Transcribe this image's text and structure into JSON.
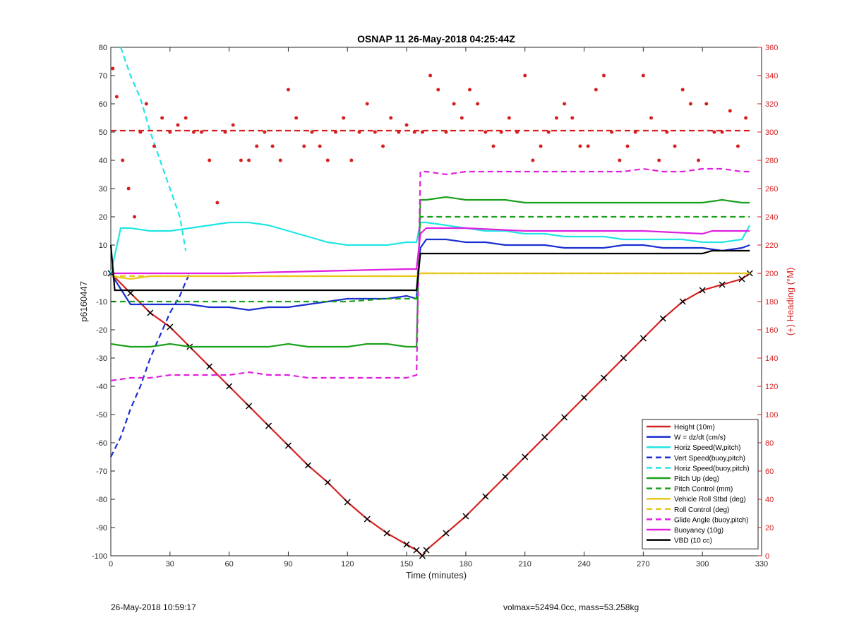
{
  "chart_data": {
    "type": "line",
    "title": "OSNAP 11 26-May-2018 04:25:44Z",
    "xlabel": "Time (minutes)",
    "ylabel": "p6160447",
    "ylabel_right": "(+) Heading (°M)",
    "xlim": [
      0,
      330
    ],
    "ylim": [
      -100,
      80
    ],
    "ylim_right": [
      0,
      360
    ],
    "xticks": [
      0,
      30,
      60,
      90,
      120,
      150,
      180,
      210,
      240,
      270,
      300,
      330
    ],
    "yticks": [
      -100,
      -90,
      -80,
      -70,
      -60,
      -50,
      -40,
      -30,
      -20,
      -10,
      0,
      10,
      20,
      30,
      40,
      50,
      60,
      70,
      80
    ],
    "yticks_right": [
      0,
      20,
      40,
      60,
      80,
      100,
      120,
      140,
      160,
      180,
      200,
      220,
      240,
      260,
      280,
      300,
      320,
      340,
      360
    ],
    "grid": false,
    "legend_position": "lower-right",
    "series": [
      {
        "name": "Height (10m)",
        "color": "#d62020",
        "style": "solid",
        "x": [
          0,
          10,
          20,
          30,
          40,
          50,
          60,
          70,
          80,
          90,
          100,
          110,
          120,
          130,
          140,
          150,
          155,
          158,
          160,
          170,
          180,
          190,
          200,
          210,
          220,
          230,
          240,
          250,
          260,
          270,
          280,
          290,
          300,
          310,
          320,
          324
        ],
        "y": [
          0,
          -7,
          -14,
          -19,
          -26,
          -33,
          -40,
          -47,
          -54,
          -61,
          -68,
          -74,
          -81,
          -87,
          -92,
          -96,
          -98,
          -100,
          -98,
          -92,
          -86,
          -79,
          -72,
          -65,
          -58,
          -51,
          -44,
          -37,
          -30,
          -23,
          -16,
          -10,
          -6,
          -4,
          -2,
          0
        ]
      },
      {
        "name": "W = dz/dt (cm/s)",
        "color": "#1a2fd0",
        "style": "solid",
        "x": [
          0,
          10,
          20,
          30,
          40,
          50,
          60,
          70,
          80,
          90,
          100,
          110,
          120,
          130,
          140,
          150,
          155,
          157,
          160,
          170,
          180,
          190,
          200,
          210,
          220,
          230,
          240,
          250,
          260,
          270,
          280,
          290,
          300,
          310,
          320,
          324
        ],
        "y": [
          0,
          -11,
          -11,
          -11,
          -11,
          -12,
          -12,
          -13,
          -12,
          -12,
          -11,
          -10,
          -9,
          -9,
          -9,
          -8,
          -9,
          9,
          12,
          12,
          11,
          11,
          10,
          10,
          10,
          9,
          9,
          9,
          10,
          10,
          9,
          9,
          9,
          8,
          9,
          10
        ]
      },
      {
        "name": "Horiz Speed(W,pitch)",
        "color": "#22e5e5",
        "style": "solid",
        "x": [
          0,
          5,
          10,
          20,
          30,
          40,
          50,
          60,
          70,
          80,
          90,
          100,
          110,
          120,
          130,
          140,
          150,
          155,
          157,
          160,
          170,
          180,
          190,
          200,
          210,
          220,
          230,
          240,
          250,
          260,
          270,
          280,
          290,
          300,
          310,
          320,
          324
        ],
        "y": [
          0,
          16,
          16,
          15,
          15,
          16,
          17,
          18,
          18,
          17,
          15,
          13,
          11,
          10,
          10,
          10,
          11,
          11,
          18,
          18,
          17,
          16,
          15,
          15,
          14,
          14,
          13,
          13,
          13,
          12,
          12,
          12,
          12,
          11,
          11,
          12,
          17
        ]
      },
      {
        "name": "Vert Speed(buoy,pitch)",
        "color": "#1a2fd0",
        "style": "dashed",
        "x": [
          0,
          5,
          10,
          15,
          20,
          25,
          30,
          35,
          38,
          40
        ],
        "y": [
          -65,
          -58,
          -48,
          -40,
          -30,
          -22,
          -14,
          -8,
          -3,
          0
        ]
      },
      {
        "name": "Horiz Speed(buoy,pitch)",
        "color": "#22e5e5",
        "style": "dashed",
        "x": [
          5,
          10,
          15,
          20,
          25,
          30,
          35,
          38
        ],
        "y": [
          80,
          70,
          62,
          50,
          40,
          30,
          20,
          8
        ]
      },
      {
        "name": "Pitch Up (deg)",
        "color": "#1aa01a",
        "style": "solid",
        "x": [
          0,
          10,
          20,
          30,
          40,
          50,
          60,
          70,
          80,
          90,
          100,
          110,
          120,
          130,
          140,
          150,
          155,
          157,
          160,
          170,
          180,
          190,
          200,
          210,
          220,
          230,
          240,
          250,
          260,
          270,
          280,
          290,
          300,
          310,
          320,
          324
        ],
        "y": [
          -25,
          -26,
          -26,
          -25,
          -26,
          -26,
          -26,
          -26,
          -26,
          -25,
          -26,
          -26,
          -26,
          -25,
          -25,
          -26,
          -26,
          26,
          26,
          27,
          26,
          26,
          26,
          25,
          25,
          25,
          25,
          25,
          25,
          25,
          25,
          25,
          25,
          26,
          25,
          25
        ]
      },
      {
        "name": "Pitch Control (mm)",
        "color": "#1aa01a",
        "style": "dashed",
        "x": [
          0,
          10,
          20,
          40,
          60,
          80,
          100,
          120,
          140,
          155,
          157,
          160,
          180,
          200,
          220,
          240,
          260,
          280,
          300,
          320,
          324
        ],
        "y": [
          -10,
          -10,
          -10,
          -10,
          -10,
          -10,
          -10,
          -10,
          -9,
          -9,
          20,
          20,
          20,
          20,
          20,
          20,
          20,
          20,
          20,
          20,
          20
        ]
      },
      {
        "name": "Vehicle Roll Stbd (deg)",
        "color": "#e8c81a",
        "style": "solid",
        "x": [
          0,
          10,
          20,
          30,
          40,
          60,
          80,
          100,
          120,
          140,
          155,
          157,
          160,
          180,
          200,
          220,
          240,
          260,
          280,
          300,
          320,
          324
        ],
        "y": [
          -1,
          -2,
          -1,
          -1,
          -1,
          -1,
          -1,
          -1,
          -1,
          -1,
          -1,
          0,
          0,
          0,
          0,
          0,
          0,
          0,
          0,
          0,
          0,
          0
        ]
      },
      {
        "name": "Roll Control (deg)",
        "color": "#e8c81a",
        "style": "dashed",
        "x": [
          0,
          10,
          20,
          40,
          60,
          80,
          100,
          120,
          140,
          155,
          157,
          160,
          180,
          200,
          220,
          240,
          260,
          280,
          300,
          320,
          324
        ],
        "y": [
          -1,
          -1,
          -1,
          -1,
          -1,
          -1,
          -1,
          -1,
          -1,
          -1,
          0,
          0,
          0,
          0,
          0,
          0,
          0,
          0,
          0,
          0,
          0
        ]
      },
      {
        "name": "Glide Angle (buoy,pitch)",
        "color": "#e020e0",
        "style": "dashed",
        "x": [
          0,
          10,
          20,
          30,
          40,
          50,
          60,
          70,
          80,
          90,
          100,
          110,
          120,
          130,
          140,
          150,
          155,
          157,
          160,
          170,
          180,
          190,
          200,
          210,
          220,
          230,
          240,
          250,
          260,
          270,
          280,
          290,
          300,
          310,
          320,
          324
        ],
        "y": [
          -38,
          -37,
          -37,
          -36,
          -36,
          -36,
          -36,
          -35,
          -36,
          -36,
          -37,
          -37,
          -37,
          -37,
          -37,
          -37,
          -36,
          36,
          36,
          35,
          36,
          36,
          36,
          36,
          36,
          36,
          36,
          36,
          36,
          37,
          36,
          36,
          37,
          37,
          36,
          36
        ]
      },
      {
        "name": "Buoyancy (10g)",
        "color": "#e020e0",
        "style": "solid",
        "x": [
          0,
          30,
          60,
          90,
          120,
          150,
          155,
          157,
          160,
          180,
          210,
          240,
          270,
          300,
          305,
          320,
          324
        ],
        "y": [
          0,
          0,
          0,
          0.5,
          1,
          1.5,
          1.5,
          14,
          16,
          16,
          15,
          15,
          15,
          14,
          15,
          15,
          15
        ]
      },
      {
        "name": "VBD (10 cc)",
        "color": "#000000",
        "style": "solid",
        "x": [
          0,
          2,
          5,
          30,
          60,
          90,
          120,
          150,
          155,
          157,
          160,
          180,
          210,
          240,
          270,
          300,
          305,
          320,
          324
        ],
        "y": [
          10,
          -6,
          -6,
          -6,
          -6,
          -6,
          -6,
          -6,
          -6,
          7,
          7,
          7,
          7,
          7,
          7,
          7,
          8,
          8,
          8
        ]
      },
      {
        "name": "",
        "axis": "right",
        "color": "#d62020",
        "style": "dashed",
        "x": [
          0,
          324
        ],
        "y": [
          301,
          301
        ]
      },
      {
        "name": "",
        "axis": "right",
        "color": "#d62020",
        "style": "dots",
        "x": [
          1,
          3,
          6,
          9,
          12,
          15,
          18,
          22,
          26,
          30,
          34,
          38,
          42,
          46,
          50,
          54,
          58,
          62,
          66,
          70,
          74,
          78,
          82,
          86,
          90,
          94,
          98,
          102,
          106,
          110,
          114,
          118,
          122,
          126,
          130,
          134,
          138,
          142,
          146,
          150,
          154,
          158,
          162,
          166,
          170,
          174,
          178,
          182,
          186,
          190,
          194,
          198,
          202,
          206,
          210,
          214,
          218,
          222,
          226,
          230,
          234,
          238,
          242,
          246,
          250,
          254,
          258,
          262,
          266,
          270,
          274,
          278,
          282,
          286,
          290,
          294,
          298,
          302,
          306,
          310,
          314,
          318,
          322
        ],
        "y": [
          345,
          325,
          280,
          260,
          240,
          300,
          320,
          290,
          310,
          300,
          305,
          310,
          300,
          300,
          280,
          250,
          300,
          305,
          280,
          280,
          290,
          300,
          290,
          280,
          330,
          310,
          290,
          300,
          290,
          280,
          300,
          310,
          280,
          300,
          320,
          300,
          290,
          310,
          300,
          305,
          300,
          300,
          340,
          330,
          300,
          320,
          310,
          330,
          320,
          300,
          290,
          300,
          310,
          300,
          340,
          280,
          290,
          300,
          310,
          320,
          310,
          290,
          290,
          330,
          340,
          300,
          280,
          290,
          300,
          340,
          310,
          280,
          300,
          290,
          330,
          320,
          280,
          320,
          300,
          300,
          315,
          290,
          310
        ]
      }
    ]
  },
  "footer": {
    "left": "26-May-2018 10:59:17",
    "right": "volmax=52494.0cc, mass=53.258kg"
  }
}
